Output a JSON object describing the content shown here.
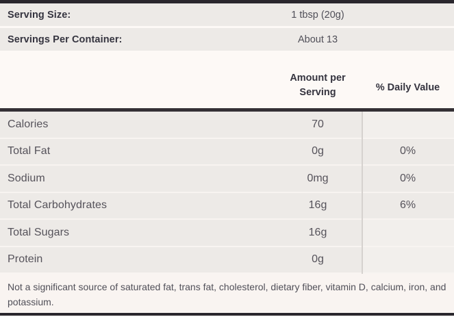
{
  "colors": {
    "page_background": "#fdf9f6",
    "row_background": "#edeae7",
    "empty_cell_background": "#f2efec",
    "footnote_background": "#f9f4f1",
    "dark_bar": "#2a272d",
    "thick_rule": "#343035",
    "row_divider": "#f8f4f1",
    "column_divider": "#d6d2cf",
    "bold_text": "#35343f",
    "regular_text": "#55525a"
  },
  "serving_info": {
    "rows": [
      {
        "label": "Serving Size:",
        "value": "1 tbsp (20g)"
      },
      {
        "label": "Servings Per Container:",
        "value": "About 13"
      }
    ]
  },
  "table": {
    "headers": {
      "amount": "Amount per Serving",
      "daily_value": "% Daily Value"
    },
    "rows": [
      {
        "label": "Calories",
        "amount": "70",
        "daily_value": ""
      },
      {
        "label": "Total Fat",
        "amount": "0g",
        "daily_value": "0%"
      },
      {
        "label": "Sodium",
        "amount": "0mg",
        "daily_value": "0%"
      },
      {
        "label": "Total Carbohydrates",
        "amount": "16g",
        "daily_value": "6%"
      },
      {
        "label": "Total Sugars",
        "amount": "16g",
        "daily_value": ""
      },
      {
        "label": "Protein",
        "amount": "0g",
        "daily_value": ""
      }
    ]
  },
  "footnote": "Not a significant source of saturated fat, trans fat, cholesterol, dietary fiber, vitamin D, calcium, iron, and potassium."
}
